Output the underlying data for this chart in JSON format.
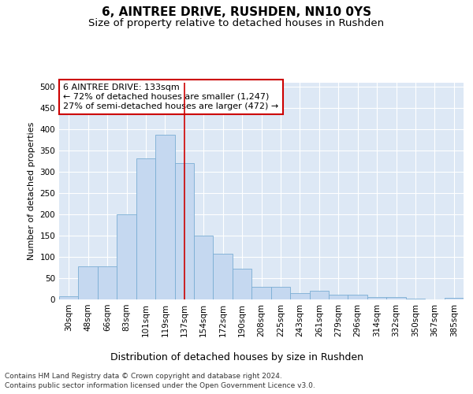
{
  "title": "6, AINTREE DRIVE, RUSHDEN, NN10 0YS",
  "subtitle": "Size of property relative to detached houses in Rushden",
  "xlabel": "Distribution of detached houses by size in Rushden",
  "ylabel": "Number of detached properties",
  "categories": [
    "30sqm",
    "48sqm",
    "66sqm",
    "83sqm",
    "101sqm",
    "119sqm",
    "137sqm",
    "154sqm",
    "172sqm",
    "190sqm",
    "208sqm",
    "225sqm",
    "243sqm",
    "261sqm",
    "279sqm",
    "296sqm",
    "314sqm",
    "332sqm",
    "350sqm",
    "367sqm",
    "385sqm"
  ],
  "values": [
    8,
    77,
    78,
    200,
    332,
    388,
    320,
    150,
    108,
    73,
    30,
    30,
    15,
    20,
    11,
    12,
    5,
    6,
    1,
    0,
    4
  ],
  "bar_color": "#c5d8f0",
  "bar_edge_color": "#7aadd4",
  "vline_color": "#cc0000",
  "annotation_text": "6 AINTREE DRIVE: 133sqm\n← 72% of detached houses are smaller (1,247)\n27% of semi-detached houses are larger (472) →",
  "annotation_box_facecolor": "#ffffff",
  "annotation_box_edgecolor": "#cc0000",
  "ylim": [
    0,
    510
  ],
  "yticks": [
    0,
    50,
    100,
    150,
    200,
    250,
    300,
    350,
    400,
    450,
    500
  ],
  "fig_bg_color": "#ffffff",
  "plot_bg_color": "#dde8f5",
  "grid_color": "#ffffff",
  "footer1": "Contains HM Land Registry data © Crown copyright and database right 2024.",
  "footer2": "Contains public sector information licensed under the Open Government Licence v3.0.",
  "title_fontsize": 11,
  "subtitle_fontsize": 9.5,
  "xlabel_fontsize": 9,
  "ylabel_fontsize": 8,
  "tick_fontsize": 7.5,
  "annotation_fontsize": 8,
  "footer_fontsize": 6.5
}
